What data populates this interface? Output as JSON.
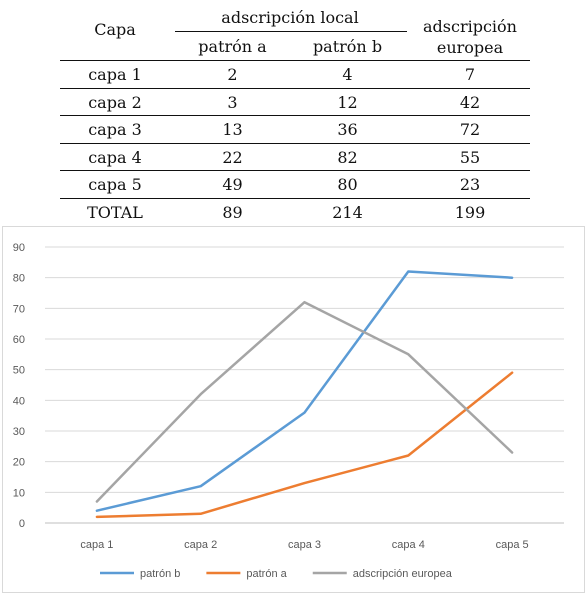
{
  "table": {
    "header": {
      "capa": "Capa",
      "group": "adscripción local",
      "col_a": "patrón a",
      "col_b": "patrón b",
      "col_eu_line1": "adscripción",
      "col_eu_line2": "europea"
    },
    "rows": [
      {
        "label": "capa 1",
        "a": "2",
        "b": "4",
        "eu": "7"
      },
      {
        "label": "capa 2",
        "a": "3",
        "b": "12",
        "eu": "42"
      },
      {
        "label": "capa 3",
        "a": "13",
        "b": "36",
        "eu": "72"
      },
      {
        "label": "capa 4",
        "a": "22",
        "b": "82",
        "eu": "55"
      },
      {
        "label": "capa 5",
        "a": "49",
        "b": "80",
        "eu": "23"
      }
    ],
    "total": {
      "label": "TOTAL",
      "a": "89",
      "b": "214",
      "eu": "199"
    }
  },
  "chart_data": {
    "type": "line",
    "categories": [
      "capa 1",
      "capa 2",
      "capa 3",
      "capa 4",
      "capa 5"
    ],
    "series": [
      {
        "name": "patrón b",
        "values": [
          4,
          12,
          36,
          82,
          80
        ],
        "color": "#5b9bd5"
      },
      {
        "name": "patrón a",
        "values": [
          2,
          3,
          13,
          22,
          49
        ],
        "color": "#ed7d31"
      },
      {
        "name": "adscripción europea",
        "values": [
          7,
          42,
          72,
          55,
          23
        ],
        "color": "#a5a5a5"
      }
    ],
    "ylim": [
      0,
      90
    ],
    "yticks": [
      "0",
      "10",
      "20",
      "30",
      "40",
      "50",
      "60",
      "70",
      "80",
      "90"
    ],
    "grid": true,
    "legend": "bottom"
  }
}
